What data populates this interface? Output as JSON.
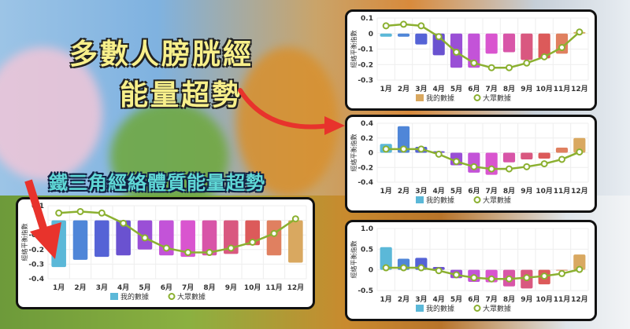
{
  "headline": {
    "line1": "多數人膀胱經",
    "line2": "能量超勢"
  },
  "subheadline": "鐵三角經絡體質能量超勢",
  "colors": {
    "line": "#8bb030",
    "bars": [
      "#5bb8d8",
      "#4f86d8",
      "#5563d6",
      "#6a52d0",
      "#9a4fd6",
      "#c353d8",
      "#d955cf",
      "#d855a8",
      "#d95880",
      "#dc5a5a",
      "#e08060",
      "#d9a860"
    ],
    "arrow": "#e8332c"
  },
  "chart_data": [
    {
      "type": "bar",
      "ylabel": "經絡平衡指數",
      "ylim": [
        -0.3,
        0.1
      ],
      "yticks": [
        "0.1",
        "0",
        "-0.1",
        "-0.2",
        "-0.3"
      ],
      "ytick_values": [
        0.1,
        0,
        -0.1,
        -0.2,
        -0.3
      ],
      "categories": [
        "1月",
        "2月",
        "3月",
        "4月",
        "5月",
        "6月",
        "7月",
        "8月",
        "9月",
        "10月",
        "11月",
        "12月"
      ],
      "legend_swatch": "#d9a860",
      "grid": true,
      "legend": "bottom",
      "series": [
        {
          "name": "我的數據",
          "type": "bar",
          "values": [
            -0.02,
            -0.02,
            -0.07,
            -0.14,
            -0.22,
            -0.22,
            -0.13,
            -0.12,
            -0.17,
            -0.16,
            -0.13,
            0.01
          ]
        },
        {
          "name": "大眾數據",
          "type": "line",
          "values": [
            0.05,
            0.06,
            0.05,
            -0.02,
            -0.12,
            -0.19,
            -0.22,
            -0.22,
            -0.19,
            -0.15,
            -0.09,
            0.01
          ]
        }
      ]
    },
    {
      "type": "bar",
      "ylabel": "經絡平衡指數",
      "ylim": [
        -0.4,
        0.4
      ],
      "yticks": [
        "0.4",
        "0.2",
        "0",
        "-0.2",
        "-0.4"
      ],
      "ytick_values": [
        0.4,
        0.2,
        0,
        -0.2,
        -0.4
      ],
      "categories": [
        "1月",
        "2月",
        "3月",
        "4月",
        "5月",
        "6月",
        "7月",
        "8月",
        "9月",
        "10月",
        "11月",
        "12月"
      ],
      "legend_swatch": "#5bb8d8",
      "grid": true,
      "legend": "bottom",
      "series": [
        {
          "name": "我的數據",
          "type": "bar",
          "values": [
            0.12,
            0.36,
            0.08,
            0.02,
            -0.17,
            -0.27,
            -0.3,
            -0.13,
            -0.09,
            -0.08,
            0.07,
            0.2
          ]
        },
        {
          "name": "大眾數據",
          "type": "line",
          "values": [
            0.05,
            0.05,
            0.05,
            -0.02,
            -0.12,
            -0.19,
            -0.22,
            -0.22,
            -0.19,
            -0.15,
            -0.09,
            0.01
          ]
        }
      ]
    },
    {
      "type": "bar",
      "ylabel": "經絡平衡指數",
      "ylim": [
        -0.5,
        1.0
      ],
      "yticks": [
        "1.0",
        "0.5",
        "0",
        "-0.5"
      ],
      "ytick_values": [
        1.0,
        0.5,
        0,
        -0.5
      ],
      "categories": [
        "1月",
        "2月",
        "3月",
        "4月",
        "5月",
        "6月",
        "7月",
        "8月",
        "9月",
        "10月",
        "11月",
        "12月"
      ],
      "legend_swatch": "#5bb8d8",
      "grid": true,
      "legend": "bottom",
      "series": [
        {
          "name": "我的數據",
          "type": "bar",
          "values": [
            0.55,
            0.27,
            0.29,
            0.07,
            -0.2,
            -0.29,
            -0.3,
            -0.4,
            -0.45,
            -0.35,
            -0.01,
            0.37
          ]
        },
        {
          "name": "大眾數據",
          "type": "line",
          "values": [
            0.05,
            0.05,
            0.05,
            -0.02,
            -0.12,
            -0.19,
            -0.22,
            -0.22,
            -0.19,
            -0.15,
            -0.09,
            0.01
          ]
        }
      ]
    },
    {
      "type": "bar",
      "ylabel": "經絡平衡指數",
      "ylim": [
        -0.4,
        0.1
      ],
      "yticks": [
        "0.1",
        "0",
        "-0.1",
        "-0.2",
        "-0.3",
        "-0.4"
      ],
      "ytick_values": [
        0.1,
        0,
        -0.1,
        -0.2,
        -0.3,
        -0.4
      ],
      "categories": [
        "1月",
        "2月",
        "3月",
        "4月",
        "5月",
        "6月",
        "7月",
        "8月",
        "9月",
        "10月",
        "11月",
        "12月"
      ],
      "legend_swatch": "#5bb8d8",
      "grid": true,
      "legend": "bottom",
      "series": [
        {
          "name": "我的數據",
          "type": "bar",
          "values": [
            -0.32,
            -0.27,
            -0.25,
            -0.24,
            -0.2,
            -0.24,
            -0.25,
            -0.24,
            -0.23,
            -0.17,
            -0.24,
            -0.29
          ]
        },
        {
          "name": "大眾數據",
          "type": "line",
          "values": [
            0.05,
            0.06,
            0.05,
            -0.02,
            -0.12,
            -0.19,
            -0.22,
            -0.22,
            -0.19,
            -0.15,
            -0.09,
            0.01
          ]
        }
      ]
    }
  ]
}
